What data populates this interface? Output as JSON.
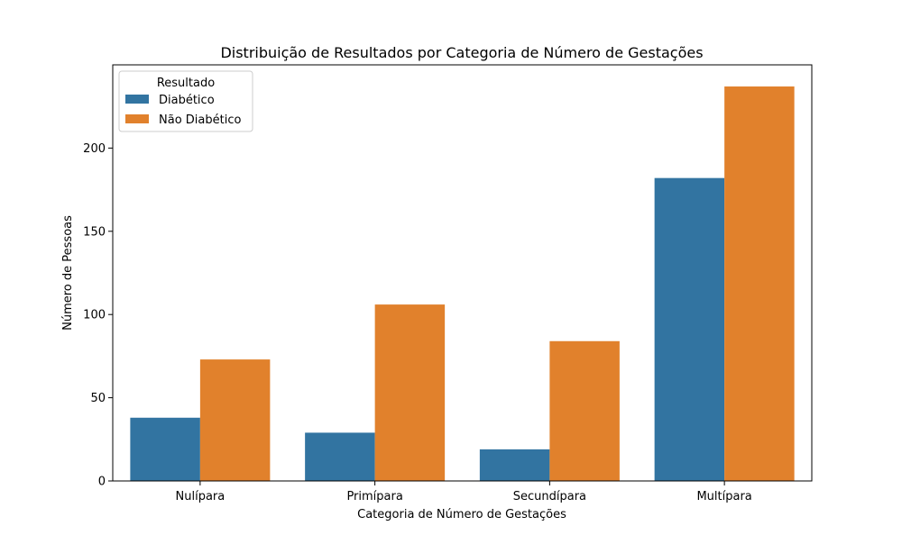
{
  "chart_data": {
    "type": "bar",
    "title": "Distribuição de Resultados por Categoria de Número de Gestações",
    "xlabel": "Categoria de Número de Gestações",
    "ylabel": "Número de Pessoas",
    "categories": [
      "Nulípara",
      "Primípara",
      "Secundípara",
      "Multípara"
    ],
    "series": [
      {
        "name": "Diabético",
        "values": [
          38,
          29,
          19,
          182
        ],
        "color": "#3274a1"
      },
      {
        "name": "Não Diabético",
        "values": [
          73,
          106,
          84,
          237
        ],
        "color": "#e1812c"
      }
    ],
    "ylim": [
      0,
      250
    ],
    "yticks": [
      0,
      50,
      100,
      150,
      200
    ],
    "legend": {
      "title": "Resultado",
      "position": "top-left"
    },
    "grid": false
  }
}
